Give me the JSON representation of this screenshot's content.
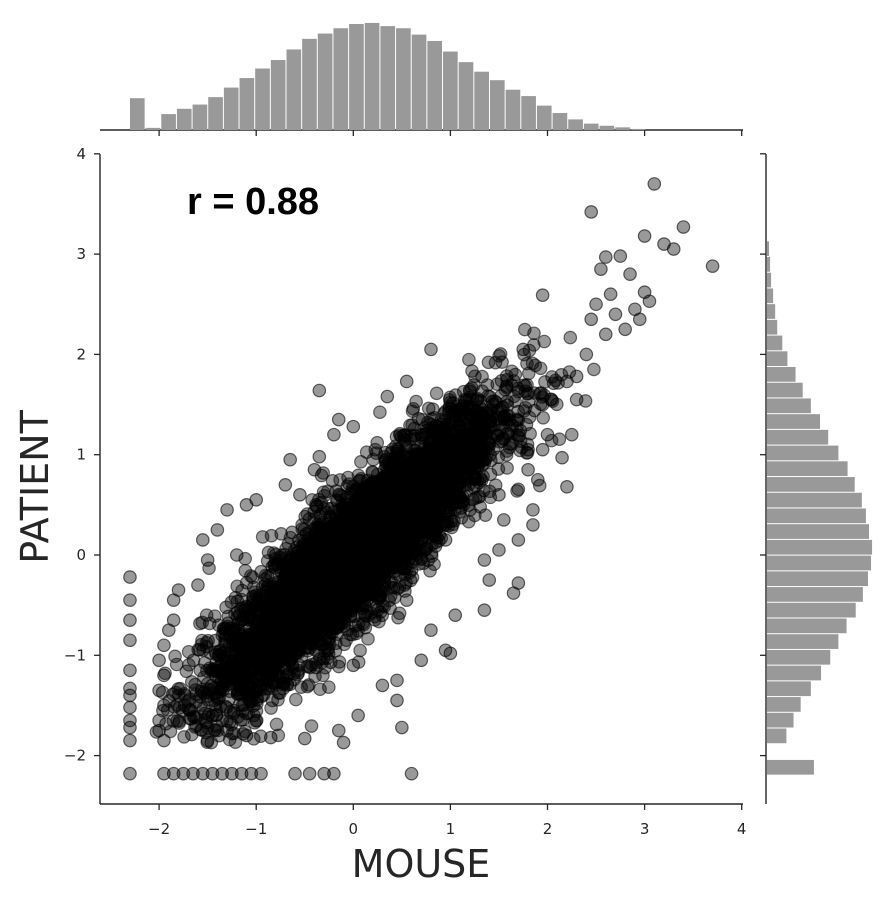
{
  "chart_data": {
    "type": "scatter",
    "title": "",
    "xlabel": "MOUSE",
    "ylabel": "PATIENT",
    "xlim": [
      -2.6,
      4.0
    ],
    "ylim": [
      -2.5,
      4.0
    ],
    "xticks": [
      -2,
      -1,
      0,
      1,
      2,
      3,
      4
    ],
    "yticks": [
      -2,
      -1,
      0,
      1,
      2,
      3,
      4
    ],
    "xtick_labels": [
      "−2",
      "−1",
      "0",
      "1",
      "2",
      "3",
      "4"
    ],
    "ytick_labels": [
      "−2",
      "−1",
      "0",
      "1",
      "2",
      "3",
      "4"
    ],
    "grid": false,
    "annotation": "r = 0.88",
    "point_color": "#000000",
    "point_alpha": 0.4,
    "hist_color": "#999999",
    "marginal_x_hist": {
      "bin_start": -2.3,
      "bin_width": 0.1612,
      "relative_heights": [
        0.3,
        0.02,
        0.15,
        0.2,
        0.24,
        0.31,
        0.4,
        0.49,
        0.58,
        0.66,
        0.76,
        0.86,
        0.91,
        0.96,
        1.0,
        1.01,
        0.98,
        0.96,
        0.9,
        0.84,
        0.74,
        0.64,
        0.55,
        0.47,
        0.38,
        0.32,
        0.23,
        0.16,
        0.1,
        0.06,
        0.04,
        0.025,
        0.01
      ]
    },
    "marginal_y_hist": {
      "bin_start": -2.2,
      "bin_width": 0.1567,
      "relative_heights": [
        0.46,
        0,
        0.19,
        0.26,
        0.33,
        0.43,
        0.53,
        0.62,
        0.7,
        0.78,
        0.87,
        0.94,
        0.99,
        1.02,
        1.03,
        1.0,
        0.97,
        0.93,
        0.86,
        0.79,
        0.7,
        0.6,
        0.52,
        0.43,
        0.35,
        0.28,
        0.2,
        0.15,
        0.1,
        0.08,
        0.06,
        0.04,
        0.03,
        0.02
      ]
    },
    "series": [
      {
        "points": [
          [
            3.1,
            3.7
          ],
          [
            2.45,
            3.42
          ],
          [
            3.4,
            3.27
          ],
          [
            3.0,
            3.18
          ],
          [
            3.2,
            3.1
          ],
          [
            3.3,
            3.05
          ],
          [
            3.7,
            2.88
          ],
          [
            2.6,
            2.97
          ],
          [
            2.75,
            2.98
          ],
          [
            2.55,
            2.85
          ],
          [
            2.85,
            2.8
          ],
          [
            3.0,
            2.62
          ],
          [
            3.05,
            2.53
          ],
          [
            2.65,
            2.6
          ],
          [
            2.9,
            2.45
          ],
          [
            2.7,
            2.4
          ],
          [
            2.95,
            2.35
          ],
          [
            2.5,
            2.5
          ],
          [
            2.45,
            2.35
          ],
          [
            1.95,
            2.59
          ],
          [
            2.8,
            2.25
          ],
          [
            2.6,
            2.2
          ],
          [
            2.4,
            2.0
          ],
          [
            1.75,
            2.05
          ],
          [
            0.8,
            2.05
          ],
          [
            0.55,
            1.73
          ],
          [
            -0.35,
            1.64
          ],
          [
            0.35,
            1.58
          ],
          [
            2.2,
            1.73
          ],
          [
            2.3,
            1.78
          ],
          [
            2.3,
            1.55
          ],
          [
            1.95,
            1.5
          ],
          [
            2.0,
            1.2
          ],
          [
            1.8,
            1.05
          ],
          [
            1.95,
            1.05
          ],
          [
            2.15,
            0.97
          ],
          [
            2.25,
            1.2
          ],
          [
            2.2,
            0.68
          ],
          [
            1.8,
            0.85
          ],
          [
            1.9,
            0.75
          ],
          [
            -0.15,
            1.35
          ],
          [
            0.0,
            1.28
          ],
          [
            -0.2,
            1.2
          ],
          [
            -0.35,
            0.98
          ],
          [
            -0.65,
            0.95
          ],
          [
            -0.4,
            0.85
          ],
          [
            -0.7,
            0.7
          ],
          [
            -0.55,
            0.6
          ],
          [
            -1.0,
            0.55
          ],
          [
            -1.1,
            0.5
          ],
          [
            -1.3,
            0.45
          ],
          [
            -1.4,
            0.25
          ],
          [
            -1.55,
            0.15
          ],
          [
            -1.2,
            0.0
          ],
          [
            -1.5,
            -0.05
          ],
          [
            -1.6,
            -0.3
          ],
          [
            -1.8,
            -0.35
          ],
          [
            -1.85,
            -0.45
          ],
          [
            -1.85,
            -0.65
          ],
          [
            -1.9,
            -0.75
          ],
          [
            -1.95,
            -0.9
          ],
          [
            -2.0,
            -1.05
          ],
          [
            -1.95,
            -1.2
          ],
          [
            -2.0,
            -1.35
          ],
          [
            -1.95,
            -1.5
          ],
          [
            -2.0,
            -1.65
          ],
          [
            -2.0,
            -1.75
          ],
          [
            -1.95,
            -1.85
          ],
          [
            -1.5,
            -1.85
          ],
          [
            -1.3,
            -1.75
          ],
          [
            -1.1,
            -1.8
          ],
          [
            -0.85,
            -1.82
          ],
          [
            -0.5,
            -1.83
          ],
          [
            -0.1,
            -1.87
          ],
          [
            -0.15,
            -1.75
          ],
          [
            0.05,
            -1.6
          ],
          [
            0.5,
            -1.72
          ],
          [
            0.45,
            -1.45
          ],
          [
            0.3,
            -1.3
          ],
          [
            0.0,
            -1.1
          ],
          [
            0.45,
            -1.25
          ],
          [
            0.7,
            -1.05
          ],
          [
            0.95,
            -0.95
          ],
          [
            1.0,
            -0.98
          ],
          [
            0.8,
            -0.75
          ],
          [
            1.05,
            -0.6
          ],
          [
            1.35,
            -0.55
          ],
          [
            1.4,
            -0.25
          ],
          [
            1.35,
            -0.05
          ],
          [
            1.65,
            -0.38
          ],
          [
            1.7,
            -0.28
          ],
          [
            1.5,
            0.05
          ],
          [
            1.7,
            0.15
          ],
          [
            1.85,
            0.3
          ],
          [
            1.85,
            0.45
          ],
          [
            1.55,
            0.35
          ],
          [
            1.5,
            0.6
          ],
          [
            0.95,
            0.15
          ],
          [
            0.8,
            0.3
          ],
          [
            0.6,
            -0.15
          ],
          [
            0.55,
            -0.45
          ],
          [
            0.25,
            -0.55
          ],
          [
            -2.3,
            -0.22
          ],
          [
            -2.3,
            -0.45
          ],
          [
            -2.3,
            -0.65
          ],
          [
            -2.3,
            -0.85
          ],
          [
            -2.3,
            -1.15
          ],
          [
            -2.3,
            -1.33
          ],
          [
            -2.3,
            -1.4
          ],
          [
            -2.3,
            -1.52
          ],
          [
            -2.3,
            -1.65
          ],
          [
            -2.3,
            -1.72
          ],
          [
            -2.3,
            -1.85
          ],
          [
            -2.3,
            -2.18
          ],
          [
            -1.95,
            -2.18
          ],
          [
            -1.85,
            -2.18
          ],
          [
            -1.75,
            -2.18
          ],
          [
            -1.65,
            -2.18
          ],
          [
            -1.55,
            -2.18
          ],
          [
            -1.45,
            -2.18
          ],
          [
            -1.35,
            -2.18
          ],
          [
            -1.25,
            -2.18
          ],
          [
            -1.15,
            -2.18
          ],
          [
            -1.05,
            -2.18
          ],
          [
            -0.95,
            -2.18
          ],
          [
            -0.6,
            -2.18
          ],
          [
            -0.45,
            -2.18
          ],
          [
            -0.3,
            -2.18
          ],
          [
            -0.2,
            -2.18
          ],
          [
            0.6,
            -2.18
          ]
        ],
        "dense_band": {
          "description_source": "inferred visible scatter cloud",
          "slope": 0.88,
          "center_x": 0.0,
          "center_y": 0.0,
          "count": 4800
        }
      }
    ]
  }
}
